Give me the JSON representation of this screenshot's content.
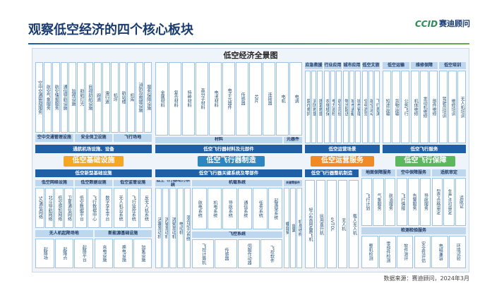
{
  "header": {
    "title": "观察低空经济的四个核心板块",
    "logo": "CCID",
    "logo_name": "赛迪顾问"
  },
  "panel_title": "低空经济全景图",
  "infrastructure": {
    "label": "低空基础设施",
    "top_items": [
      "空中交通管理服务",
      "航空气象服务",
      "航空情报服务",
      "通信导航设施",
      "监视设施",
      "助航灯光",
      "目视助航设施",
      "跑道",
      "滑行道",
      "机坪",
      "航站楼",
      "机库",
      "消防及救援设施",
      "服务保障设施"
    ],
    "mid_bars": [
      "空中交通管理设施",
      "安全保卫设施",
      "飞行场地"
    ],
    "main_bar": "通航机场设施、设备",
    "new_bar": "低空新型基础设施",
    "sub_heads": [
      "低空网络设施",
      "低空数据设施",
      "低空监管设施"
    ],
    "sub_items": [
      [
        "5G通信网络",
        "北斗导航网络",
        "低空感知网络",
        "卫星通信网络"
      ],
      [
        "低空数据平台",
        "飞行数据中心",
        "数字孪生平台"
      ],
      [
        "无人机云系统",
        "飞行监控系统",
        "反无人机系统"
      ]
    ],
    "low_heads": [
      "无人机起降场地",
      "新能源基础设施"
    ],
    "low_items": [
      [
        "起降场",
        "起降点",
        "起降平台"
      ],
      [
        "充电设施",
        "换电设施",
        "加氢设施"
      ]
    ]
  },
  "manufacturing": {
    "label": "低空飞行器制造",
    "material_items": [
      "金属材料",
      "复合材料",
      "特种材料",
      "高分子材料",
      "电池材料",
      "电子元器件",
      "传感器",
      "芯片",
      "连接器",
      "电机",
      "电调"
    ],
    "material_bars": [
      "材料",
      "元器件"
    ],
    "main_bar": "低空飞行器材料及元部件",
    "key_bar": "低空飞行器关键系统及零部件",
    "power_head": "低空飞行器动力系统",
    "power_items": [
      "活塞发动机",
      "涡轴发动机",
      "涡桨发动机",
      "电动机",
      "混合动力系统"
    ],
    "airborne_head": "机载系统",
    "airborne_items": [
      "航电系统",
      "机电系统",
      "导航系统",
      "通信系统",
      "任务系统",
      "起落架系统"
    ],
    "flight_control_head": "飞控系统",
    "flight_control_items": [
      "飞控计算机",
      "传感器",
      "伺服作动器",
      "飞控软件"
    ],
    "parts_head": "关键零部件",
    "parts_items": [
      "螺旋桨",
      "旋翼",
      "机身结构"
    ],
    "whole_bar": "低空飞行器整机制造",
    "whole_items": [
      "轻小型固定翼飞机",
      "民用直升机",
      "eVTOL",
      "无人机",
      "载人无人机"
    ]
  },
  "operations": {
    "label": "低空运营服务",
    "heads": [
      "应急救援",
      "行业应用",
      "城市应用",
      "低空文旅"
    ],
    "items": [
      [
        "医疗救护",
        "消防救援",
        "搜索救援"
      ],
      [
        "农林植保",
        "电力巡检",
        "航空测绘"
      ],
      [
        "物流配送",
        "城市通勤",
        "城市管理"
      ],
      [
        "空中游览",
        "航空运动",
        "飞行表演"
      ]
    ],
    "main_bar": "低空运营场景"
  },
  "guarantee": {
    "label": "低空飞行保障",
    "top_heads": [
      "低空运输",
      "维修保障",
      "低空培训"
    ],
    "top_items": [
      [
        "短途运输",
        "货物运输",
        "公务飞行"
      ],
      [
        "机体维修",
        "发动机维修",
        "部件维修"
      ],
      [
        "驾驶员培训",
        "维修培训",
        "无人机培训"
      ]
    ],
    "main_bar": "低空飞行服务",
    "lower_heads": [
      "地面保障服务",
      "空中保障服务",
      "适航审定"
    ],
    "lower_items": [
      [
        "飞行计划",
        "气象服务",
        "航油服务"
      ],
      [
        "飞行情报",
        "告警服务",
        "导航服务"
      ],
      [
        "型号合格审定",
        "生产许可审定",
        "适航证"
      ]
    ],
    "test_head": "检测检验服务",
    "test_items": [
      "整机检测",
      "零部件检测",
      "软件测评",
      "安全性评估",
      "电磁兼容",
      "环境试验"
    ]
  },
  "footer": "数据来源：赛迪顾问，2024年3月"
}
